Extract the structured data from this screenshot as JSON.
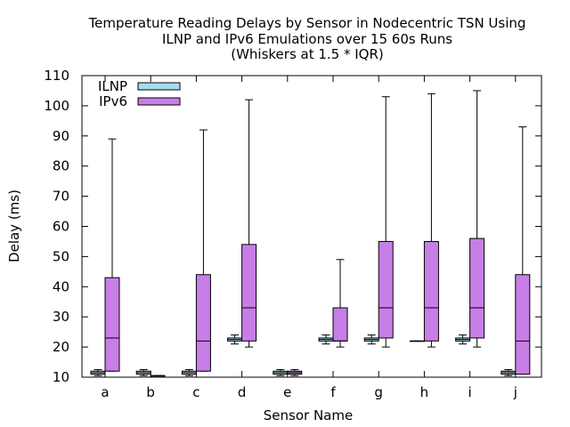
{
  "chart_data": {
    "type": "boxplot",
    "title_lines": [
      "Temperature Reading Delays by Sensor in Nodecentric TSN Using",
      "ILNP and IPv6 Emulations over 15 60s Runs",
      "(Whiskers at 1.5 * IQR)"
    ],
    "xlabel": "Sensor Name",
    "ylabel": "Delay (ms)",
    "categories": [
      "a",
      "b",
      "c",
      "d",
      "e",
      "f",
      "g",
      "h",
      "i",
      "j"
    ],
    "ylim": [
      10,
      110
    ],
    "yticks": [
      10,
      20,
      30,
      40,
      50,
      60,
      70,
      80,
      90,
      100,
      110
    ],
    "grid": false,
    "legend_position": "top-left",
    "series": [
      {
        "name": "ILNP",
        "color": "#a6dcef",
        "boxes": [
          {
            "min": 10.5,
            "q1": 11.0,
            "median": 11.5,
            "q3": 12.0,
            "max": 12.5
          },
          {
            "min": 10.5,
            "q1": 11.0,
            "median": 11.5,
            "q3": 12.0,
            "max": 12.5
          },
          {
            "min": 10.5,
            "q1": 11.0,
            "median": 11.5,
            "q3": 12.0,
            "max": 12.5
          },
          {
            "min": 21.0,
            "q1": 22.0,
            "median": 22.5,
            "q3": 23.0,
            "max": 24.0
          },
          {
            "min": 10.5,
            "q1": 11.0,
            "median": 11.5,
            "q3": 12.0,
            "max": 12.5
          },
          {
            "min": 21.0,
            "q1": 22.0,
            "median": 22.5,
            "q3": 23.0,
            "max": 24.0
          },
          {
            "min": 21.0,
            "q1": 22.0,
            "median": 22.5,
            "q3": 23.0,
            "max": 24.0
          },
          {
            "min": 22.0,
            "q1": 22.0,
            "median": 22.0,
            "q3": 22.0,
            "max": 22.0
          },
          {
            "min": 21.0,
            "q1": 22.0,
            "median": 22.5,
            "q3": 23.0,
            "max": 24.0
          },
          {
            "min": 10.5,
            "q1": 11.0,
            "median": 11.5,
            "q3": 12.0,
            "max": 12.5
          }
        ]
      },
      {
        "name": "IPv6",
        "color": "#c77ee6",
        "boxes": [
          {
            "min": 12.0,
            "q1": 12.0,
            "median": 23.0,
            "q3": 43.0,
            "max": 89.0
          },
          {
            "min": 10.5,
            "q1": 10.5,
            "median": 10.5,
            "q3": 10.5,
            "max": 10.5
          },
          {
            "min": 12.0,
            "q1": 12.0,
            "median": 22.0,
            "q3": 44.0,
            "max": 92.0
          },
          {
            "min": 20.0,
            "q1": 22.0,
            "median": 33.0,
            "q3": 54.0,
            "max": 102.0
          },
          {
            "min": 10.5,
            "q1": 11.0,
            "median": 11.5,
            "q3": 12.0,
            "max": 12.5
          },
          {
            "min": 20.0,
            "q1": 22.0,
            "median": 22.0,
            "q3": 33.0,
            "max": 49.0
          },
          {
            "min": 20.0,
            "q1": 23.0,
            "median": 33.0,
            "q3": 55.0,
            "max": 103.0
          },
          {
            "min": 20.0,
            "q1": 22.0,
            "median": 33.0,
            "q3": 55.0,
            "max": 104.0
          },
          {
            "min": 20.0,
            "q1": 23.0,
            "median": 33.0,
            "q3": 56.0,
            "max": 105.0
          },
          {
            "min": 11.0,
            "q1": 11.0,
            "median": 22.0,
            "q3": 44.0,
            "max": 93.0
          }
        ]
      }
    ]
  }
}
